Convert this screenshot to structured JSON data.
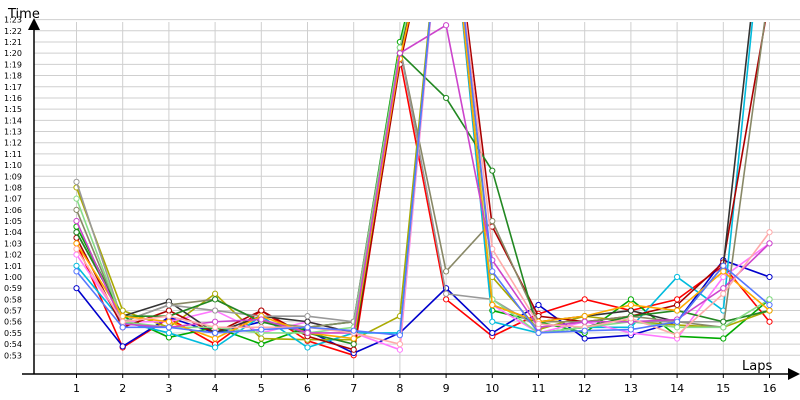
{
  "chart_data": {
    "type": "line",
    "ylabel": "Time",
    "xlabel": "Laps",
    "x": [
      1,
      2,
      3,
      4,
      5,
      6,
      7,
      8,
      9,
      10,
      11,
      12,
      13,
      14,
      15,
      16
    ],
    "y_ticks": [
      "0:53",
      "0:54",
      "0:55",
      "0:56",
      "0:57",
      "0:58",
      "0:59",
      "1:00",
      "1:01",
      "1:02",
      "1:03",
      "1:04",
      "1:05",
      "1:06",
      "1:07",
      "1:08",
      "1:09",
      "1:10",
      "1:11",
      "1:12",
      "1:13",
      "1:14",
      "1:15",
      "1:16",
      "1:17",
      "1:18",
      "1:19",
      "1:20",
      "1:21",
      "1:22",
      "1:23"
    ],
    "ylim": [
      "0:52",
      "1:25"
    ],
    "y_unit": "m:ss",
    "grid": true,
    "series": [
      {
        "color": "#ff0000",
        "values": [
          63.0,
          53.7,
          56.3,
          54.0,
          57.0,
          54.3,
          53.0,
          79.5,
          58.0,
          54.7,
          56.7,
          58.0,
          57.0,
          58.0,
          61.0,
          56.0
        ]
      },
      {
        "color": "#0000cc",
        "values": [
          59.0,
          53.8,
          56.4,
          55.0,
          56.0,
          55.2,
          53.2,
          55.0,
          59.0,
          55.0,
          57.5,
          54.5,
          54.8,
          56.0,
          61.5,
          60.0
        ]
      },
      {
        "color": "#00aa00",
        "values": [
          64.5,
          56.5,
          54.6,
          55.5,
          54.0,
          55.5,
          56.0,
          81.0,
          98.0,
          57.0,
          56.0,
          55.0,
          58.0,
          54.7,
          54.5,
          58.0
        ]
      },
      {
        "color": "#aaaa00",
        "values": [
          68.0,
          57.0,
          55.5,
          58.5,
          54.5,
          54.4,
          54.4,
          56.5,
          98.0,
          60.0,
          55.3,
          56.5,
          56.0,
          55.7,
          55.5,
          57.0
        ]
      },
      {
        "color": "#00bbdd",
        "values": [
          61.0,
          56.0,
          55.0,
          53.7,
          56.5,
          53.7,
          55.0,
          55.0,
          98.0,
          56.0,
          55.0,
          55.5,
          55.5,
          60.0,
          57.0,
          98.0
        ]
      },
      {
        "color": "#ff77ff",
        "values": [
          62.0,
          56.0,
          56.0,
          57.0,
          55.0,
          56.0,
          55.0,
          53.5,
          98.0,
          57.5,
          55.0,
          56.0,
          55.0,
          54.5,
          60.0,
          63.0
        ]
      },
      {
        "color": "#aa0000",
        "values": [
          63.5,
          55.5,
          57.0,
          55.0,
          57.0,
          54.7,
          53.5,
          79.0,
          98.0,
          64.5,
          56.5,
          56.0,
          56.5,
          57.5,
          61.3,
          85.0
        ]
      },
      {
        "color": "#333333",
        "values": [
          64.0,
          56.5,
          57.8,
          55.0,
          56.5,
          56.0,
          55.0,
          80.0,
          98.0,
          57.5,
          56.0,
          56.5,
          57.0,
          56.0,
          61.0,
          98.0
        ]
      },
      {
        "color": "#888866",
        "values": [
          66.0,
          56.0,
          57.5,
          58.0,
          56.0,
          55.5,
          56.0,
          80.5,
          60.5,
          65.0,
          56.0,
          56.0,
          56.5,
          56.0,
          55.5,
          86.0
        ]
      },
      {
        "color": "#999999",
        "values": [
          68.5,
          56.0,
          57.5,
          57.0,
          56.5,
          56.5,
          56.0,
          80.5,
          58.5,
          58.0,
          55.5,
          56.0,
          56.0,
          56.0,
          56.0,
          57.0
        ]
      },
      {
        "color": "#228822",
        "values": [
          64.0,
          56.5,
          56.5,
          58.0,
          56.0,
          55.0,
          54.0,
          80.0,
          76.0,
          69.5,
          55.0,
          55.5,
          56.5,
          57.0,
          56.0,
          57.0
        ]
      },
      {
        "color": "#88dd88",
        "values": [
          67.0,
          56.0,
          55.5,
          55.5,
          55.0,
          55.0,
          55.5,
          80.5,
          98.0,
          58.0,
          55.0,
          55.5,
          56.0,
          55.5,
          55.5,
          58.0
        ]
      },
      {
        "color": "#ffaa00",
        "values": [
          63.0,
          56.5,
          56.0,
          54.5,
          56.5,
          55.0,
          54.5,
          79.5,
          98.0,
          57.5,
          56.0,
          56.5,
          57.5,
          57.0,
          60.5,
          57.0
        ]
      },
      {
        "color": "#cc44cc",
        "values": [
          65.0,
          55.8,
          55.5,
          56.0,
          56.2,
          55.0,
          55.0,
          80.0,
          82.5,
          61.5,
          55.5,
          56.0,
          56.0,
          56.2,
          59.0,
          63.0
        ]
      },
      {
        "color": "#ffaaaa",
        "values": [
          62.5,
          56.0,
          56.5,
          55.5,
          55.5,
          55.5,
          55.0,
          54.0,
          98.0,
          62.5,
          55.8,
          55.5,
          56.3,
          54.8,
          58.5,
          64.0
        ]
      },
      {
        "color": "#5577ff",
        "values": [
          60.5,
          55.5,
          55.5,
          55.0,
          55.3,
          55.5,
          55.2,
          54.8,
          98.0,
          60.5,
          55.0,
          55.2,
          55.3,
          56.0,
          61.0,
          57.5
        ]
      }
    ]
  }
}
